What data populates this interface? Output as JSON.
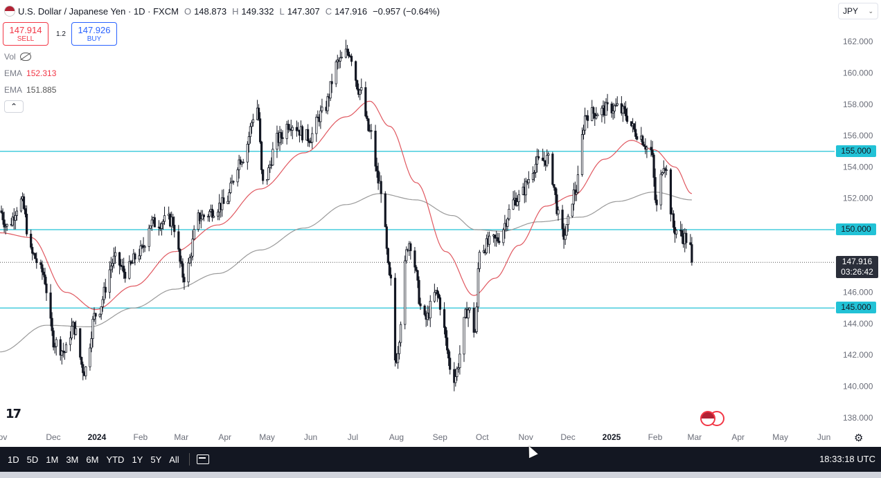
{
  "header": {
    "symbol": "U.S. Dollar / Japanese Yen · 1D · FXCM",
    "open_label": "O",
    "open": "148.873",
    "high_label": "H",
    "high": "149.332",
    "low_label": "L",
    "low": "147.307",
    "close_label": "C",
    "close": "147.916",
    "change": "−0.957 (−0.64%)"
  },
  "trade": {
    "sell_price": "147.914",
    "sell_label": "SELL",
    "spread": "1.2",
    "buy_price": "147.926",
    "buy_label": "BUY"
  },
  "indicators": {
    "vol_label": "Vol",
    "ema1_label": "EMA",
    "ema1_value": "152.313",
    "ema2_label": "EMA",
    "ema2_value": "151.885",
    "collapse_glyph": "⌃"
  },
  "currency": {
    "selected": "JPY"
  },
  "price_scale": {
    "ticks": [
      "162.000",
      "160.000",
      "158.000",
      "156.000",
      "154.000",
      "152.000",
      "150.000",
      "148.000",
      "146.000",
      "144.000",
      "142.000",
      "140.000",
      "138.000"
    ]
  },
  "levels": {
    "l155": "155.000",
    "l150": "150.000",
    "l145": "145.000"
  },
  "last_price": {
    "price": "147.916",
    "countdown": "03:26:42"
  },
  "time_axis": {
    "labels": [
      "ov",
      "Dec",
      "2024",
      "Feb",
      "Mar",
      "Apr",
      "May",
      "Jun",
      "Jul",
      "Aug",
      "Sep",
      "Oct",
      "Nov",
      "Dec",
      "2025",
      "Feb",
      "Mar",
      "Apr",
      "May",
      "Jun"
    ]
  },
  "toolbar": {
    "timeframes": [
      "1D",
      "5D",
      "1M",
      "3M",
      "6M",
      "YTD",
      "1Y",
      "5Y",
      "All"
    ],
    "clock": "18:33:18 UTC"
  },
  "logo_text": "17",
  "colors": {
    "up": "#131722",
    "down": "#131722",
    "ema_fast": "#e0575f",
    "ema_slow": "#9a9a9a",
    "level_line": "#22c2d6",
    "toolbar_bg": "#131722"
  },
  "chart_data": {
    "type": "candlestick",
    "title": "U.S. Dollar / Japanese Yen · 1D · FXCM",
    "ylim": [
      137,
      163
    ],
    "x_range": [
      "2023-10-29",
      "2025-06-15"
    ],
    "horizontal_levels": [
      155,
      150,
      145
    ],
    "last_close": 147.916,
    "anchors": [
      [
        "2023-10-29",
        151.2
      ],
      [
        "2023-11-03",
        150.2
      ],
      [
        "2023-11-13",
        151.8
      ],
      [
        "2023-11-21",
        148.4
      ],
      [
        "2023-11-28",
        147.3
      ],
      [
        "2023-12-07",
        142.8
      ],
      [
        "2023-12-14",
        142.2
      ],
      [
        "2023-12-20",
        143.8
      ],
      [
        "2023-12-28",
        141.0
      ],
      [
        "2024-01-05",
        144.6
      ],
      [
        "2024-01-19",
        148.1
      ],
      [
        "2024-01-26",
        147.3
      ],
      [
        "2024-02-06",
        148.6
      ],
      [
        "2024-02-13",
        150.4
      ],
      [
        "2024-02-28",
        150.6
      ],
      [
        "2024-03-08",
        147.0
      ],
      [
        "2024-03-19",
        150.8
      ],
      [
        "2024-04-05",
        151.6
      ],
      [
        "2024-04-18",
        154.6
      ],
      [
        "2024-04-29",
        157.8
      ],
      [
        "2024-05-03",
        152.9
      ],
      [
        "2024-05-14",
        155.8
      ],
      [
        "2024-05-22",
        156.8
      ],
      [
        "2024-06-05",
        155.9
      ],
      [
        "2024-06-14",
        157.4
      ],
      [
        "2024-06-26",
        160.7
      ],
      [
        "2024-07-03",
        161.4
      ],
      [
        "2024-07-11",
        158.9
      ],
      [
        "2024-07-18",
        156.2
      ],
      [
        "2024-07-25",
        152.9
      ],
      [
        "2024-08-02",
        146.6
      ],
      [
        "2024-08-05",
        141.7
      ],
      [
        "2024-08-15",
        149.2
      ],
      [
        "2024-08-26",
        144.2
      ],
      [
        "2024-09-03",
        145.9
      ],
      [
        "2024-09-16",
        140.6
      ],
      [
        "2024-09-26",
        144.9
      ],
      [
        "2024-10-01",
        143.5
      ],
      [
        "2024-10-04",
        148.8
      ],
      [
        "2024-10-15",
        149.3
      ],
      [
        "2024-10-31",
        152.0
      ],
      [
        "2024-11-15",
        154.3
      ],
      [
        "2024-11-21",
        154.5
      ],
      [
        "2024-12-03",
        149.6
      ],
      [
        "2024-12-11",
        152.4
      ],
      [
        "2024-12-19",
        157.4
      ],
      [
        "2025-01-10",
        157.8
      ],
      [
        "2025-01-14",
        157.5
      ],
      [
        "2025-01-24",
        156.2
      ],
      [
        "2025-02-03",
        155.0
      ],
      [
        "2025-02-07",
        151.4
      ],
      [
        "2025-02-12",
        154.3
      ],
      [
        "2025-02-20",
        150.0
      ],
      [
        "2025-02-27",
        149.5
      ],
      [
        "2025-03-03",
        148.8
      ],
      [
        "2025-03-04",
        147.9
      ]
    ],
    "ema_fast_anchors": [
      [
        "2023-10-29",
        149.8
      ],
      [
        "2023-11-20",
        149.5
      ],
      [
        "2023-12-15",
        146.0
      ],
      [
        "2024-01-05",
        144.9
      ],
      [
        "2024-02-01",
        146.4
      ],
      [
        "2024-03-01",
        148.6
      ],
      [
        "2024-04-01",
        150.3
      ],
      [
        "2024-05-01",
        152.6
      ],
      [
        "2024-06-01",
        154.9
      ],
      [
        "2024-07-01",
        157.2
      ],
      [
        "2024-07-18",
        158.2
      ],
      [
        "2024-08-01",
        156.6
      ],
      [
        "2024-08-20",
        153.0
      ],
      [
        "2024-09-10",
        148.6
      ],
      [
        "2024-09-30",
        145.8
      ],
      [
        "2024-10-15",
        146.9
      ],
      [
        "2024-11-01",
        149.0
      ],
      [
        "2024-11-20",
        151.5
      ],
      [
        "2024-12-10",
        152.2
      ],
      [
        "2025-01-01",
        154.5
      ],
      [
        "2025-01-20",
        155.7
      ],
      [
        "2025-02-05",
        155.1
      ],
      [
        "2025-02-20",
        154.0
      ],
      [
        "2025-03-04",
        152.3
      ]
    ],
    "ema_slow_anchors": [
      [
        "2023-10-29",
        142.2
      ],
      [
        "2023-12-01",
        143.9
      ],
      [
        "2024-01-01",
        143.8
      ],
      [
        "2024-02-01",
        145.0
      ],
      [
        "2024-03-01",
        146.2
      ],
      [
        "2024-04-01",
        147.2
      ],
      [
        "2024-05-01",
        148.7
      ],
      [
        "2024-06-01",
        150.1
      ],
      [
        "2024-07-01",
        151.6
      ],
      [
        "2024-07-25",
        152.3
      ],
      [
        "2024-08-20",
        151.9
      ],
      [
        "2024-09-15",
        150.9
      ],
      [
        "2024-10-01",
        150.0
      ],
      [
        "2024-10-20",
        149.9
      ],
      [
        "2024-11-15",
        150.5
      ],
      [
        "2024-12-15",
        150.8
      ],
      [
        "2025-01-10",
        151.8
      ],
      [
        "2025-02-05",
        152.4
      ],
      [
        "2025-03-04",
        151.9
      ]
    ]
  }
}
